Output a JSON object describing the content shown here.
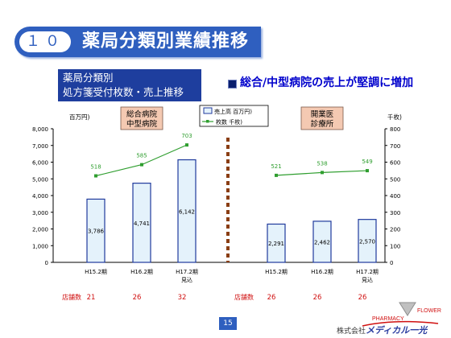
{
  "slide": {
    "number": "１０",
    "title": "薬局分類別業績推移",
    "subtitle_lines": [
      "薬局分類別",
      "処方箋受付枚数・売上推移"
    ],
    "headline": "総合/中型病院の売上が堅調に増加",
    "page": "15",
    "logo": {
      "pharmacy": "PHARMACY",
      "flower": "FLOWER",
      "company_prefix": "株式会社",
      "company_name": "メディカル一光"
    }
  },
  "colors": {
    "title_bar": "#2f5fbf",
    "bar_fill": "#e4f2fb",
    "bar_stroke": "#1f3a9c",
    "line": "#2f9e2f",
    "divider": "#8a3e14",
    "label_red": "#d01010"
  },
  "chart_data": {
    "type": "bar",
    "y_left_label": "百万円)",
    "y_right_label": "千枚)",
    "ylim_left": [
      0,
      8000
    ],
    "ylim_right": [
      0,
      800
    ],
    "yticks_left": [
      "0",
      "1,000",
      "2,000",
      "3,000",
      "4,000",
      "5,000",
      "6,000",
      "7,000",
      "8,000"
    ],
    "yticks_right": [
      "0",
      "100",
      "200",
      "300",
      "400",
      "500",
      "600",
      "700",
      "800"
    ],
    "legend": [
      "売上高 百万円)",
      "枚数 千枚)"
    ],
    "store_count_label": "店舗数",
    "groups": [
      {
        "name": [
          "総合病院",
          "中型病院"
        ],
        "categories": [
          [
            "H15.2期"
          ],
          [
            "H16.2期"
          ],
          [
            "H17.2期",
            "見込"
          ]
        ],
        "sales": [
          3786,
          4741,
          6142
        ],
        "sales_labels": [
          "3,786",
          "4,741",
          "6,142"
        ],
        "prescriptions": [
          518,
          585,
          703
        ],
        "stores": [
          21,
          26,
          32
        ]
      },
      {
        "name": [
          "開業医",
          "診療所"
        ],
        "categories": [
          [
            "H15.2期"
          ],
          [
            "H16.2期"
          ],
          [
            "H17.2期",
            "見込"
          ]
        ],
        "sales": [
          2291,
          2462,
          2570
        ],
        "sales_labels": [
          "2,291",
          "2,462",
          "2,570"
        ],
        "prescriptions": [
          521,
          538,
          549
        ],
        "stores": [
          26,
          26,
          26
        ]
      }
    ]
  }
}
